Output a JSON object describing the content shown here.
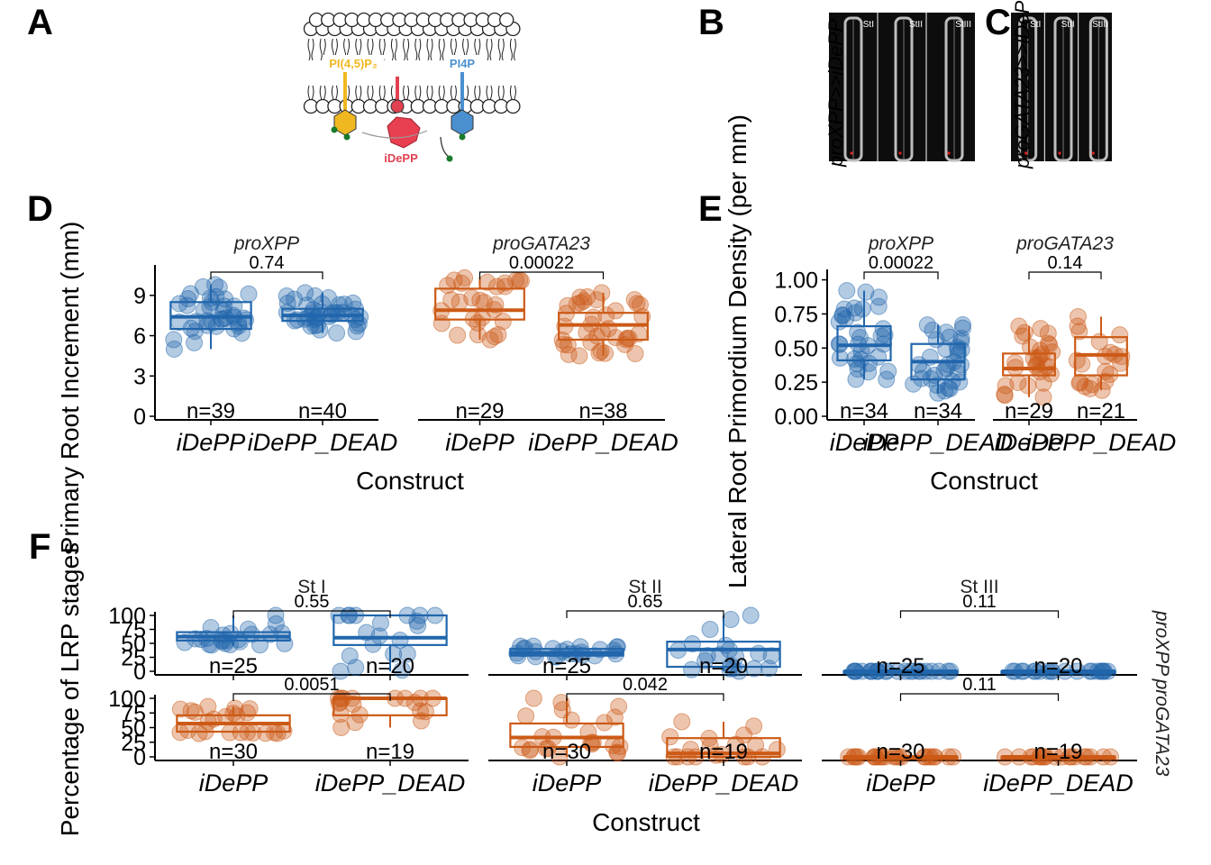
{
  "colors": {
    "proXPP": "#2166ac",
    "proGATA23": "#cc5a16",
    "lipid": "#ffffff"
  },
  "panel_labels": [
    "A",
    "B",
    "C",
    "D",
    "E",
    "F"
  ],
  "panelA": {
    "pip2": "PI(4,5)P₂",
    "pi4p": "PI4P",
    "enzyme": "iDePP"
  },
  "panelB": {
    "rotated_label": "proXPP>>iDePP",
    "stages": [
      "StI",
      "StII",
      "StIII"
    ]
  },
  "panelC": {
    "rotated_label": "proGATA23>>iDePP",
    "stages": [
      "StI",
      "StII",
      "StIII"
    ]
  },
  "chart_data": [
    {
      "id": "D",
      "type": "box",
      "ylabel": "Primary Root Increment (mm)",
      "xlabel": "Construct",
      "ylim": [
        0,
        11
      ],
      "yticks": [
        0,
        3,
        6,
        9
      ],
      "facets": [
        {
          "name": "proXPP",
          "color_key": "proXPP",
          "pvalue": "0.74",
          "groups": [
            {
              "category": "iDePP",
              "n": "n=39",
              "box": {
                "min": 5.0,
                "q1": 6.5,
                "median": 7.4,
                "q3": 8.5,
                "max": 9.8
              }
            },
            {
              "category": "iDePP_DEAD",
              "n": "n=40",
              "box": {
                "min": 6.2,
                "q1": 7.1,
                "median": 7.5,
                "q3": 8.0,
                "max": 9.2
              }
            }
          ]
        },
        {
          "name": "proGATA23",
          "color_key": "proGATA23",
          "pvalue": "0.00022",
          "groups": [
            {
              "category": "iDePP",
              "n": "n=29",
              "box": {
                "min": 5.7,
                "q1": 7.2,
                "median": 7.9,
                "q3": 9.5,
                "max": 10.3
              }
            },
            {
              "category": "iDePP_DEAD",
              "n": "n=38",
              "box": {
                "min": 4.5,
                "q1": 5.7,
                "median": 6.8,
                "q3": 7.7,
                "max": 9.2
              }
            }
          ]
        }
      ]
    },
    {
      "id": "E",
      "type": "box",
      "ylabel": "Lateral Root Primordium Density (per mm)",
      "xlabel": "Construct",
      "ylim": [
        0,
        1.05
      ],
      "yticks": [
        "0.00",
        "0.25",
        "0.50",
        "0.75",
        "1.00"
      ],
      "facets": [
        {
          "name": "proXPP",
          "color_key": "proXPP",
          "pvalue": "0.00022",
          "groups": [
            {
              "category": "iDePP",
              "n": "n=34",
              "box": {
                "min": 0.27,
                "q1": 0.41,
                "median": 0.52,
                "q3": 0.66,
                "max": 0.92
              }
            },
            {
              "category": "iDePP_DEAD",
              "n": "n=34",
              "box": {
                "min": 0.17,
                "q1": 0.27,
                "median": 0.4,
                "q3": 0.53,
                "max": 0.67
              }
            }
          ]
        },
        {
          "name": "proGATA23",
          "color_key": "proGATA23",
          "pvalue": "0.14",
          "groups": [
            {
              "category": "iDePP",
              "n": "n=29",
              "box": {
                "min": 0.14,
                "q1": 0.3,
                "median": 0.35,
                "q3": 0.46,
                "max": 0.66
              }
            },
            {
              "category": "iDePP_DEAD",
              "n": "n=21",
              "box": {
                "min": 0.19,
                "q1": 0.3,
                "median": 0.45,
                "q3": 0.58,
                "max": 0.73
              }
            }
          ]
        }
      ]
    },
    {
      "id": "F",
      "type": "box",
      "ylabel": "Percentage of LRP stages",
      "xlabel": "Construct",
      "ylim": [
        0,
        100
      ],
      "yticks": [
        0,
        25,
        50,
        75,
        100
      ],
      "cols": [
        "St I",
        "St II",
        "St III"
      ],
      "rows": [
        {
          "name": "proXPP",
          "color_key": "proXPP",
          "panels": [
            {
              "pvalue": "0.55",
              "groups": [
                {
                  "category": "iDePP",
                  "n": "n=25",
                  "box": {
                    "min": 47,
                    "q1": 55,
                    "median": 62,
                    "q3": 70,
                    "max": 100
                  }
                },
                {
                  "category": "iDePP_DEAD",
                  "n": "n=20",
                  "box": {
                    "min": 0,
                    "q1": 47,
                    "median": 60,
                    "q3": 100,
                    "max": 100
                  }
                }
              ]
            },
            {
              "pvalue": "0.65",
              "groups": [
                {
                  "category": "iDePP",
                  "n": "n=25",
                  "box": {
                    "min": 26,
                    "q1": 28,
                    "median": 33,
                    "q3": 40,
                    "max": 45
                  }
                },
                {
                  "category": "iDePP_DEAD",
                  "n": "n=20",
                  "box": {
                    "min": 0,
                    "q1": 8,
                    "median": 39,
                    "q3": 53,
                    "max": 100
                  }
                }
              ]
            },
            {
              "pvalue": "0.11",
              "groups": [
                {
                  "category": "iDePP",
                  "n": "n=25",
                  "box": {
                    "min": 0,
                    "q1": 0,
                    "median": 0,
                    "q3": 0,
                    "max": 0
                  }
                },
                {
                  "category": "iDePP_DEAD",
                  "n": "n=20",
                  "box": {
                    "min": 0,
                    "q1": 0,
                    "median": 0,
                    "q3": 0,
                    "max": 0
                  }
                }
              ]
            }
          ]
        },
        {
          "name": "proGATA23",
          "color_key": "proGATA23",
          "panels": [
            {
              "pvalue": "0.0051",
              "groups": [
                {
                  "category": "iDePP",
                  "n": "n=30",
                  "box": {
                    "min": 40,
                    "q1": 43,
                    "median": 57,
                    "q3": 71,
                    "max": 86
                  }
                },
                {
                  "category": "iDePP_DEAD",
                  "n": "n=19",
                  "box": {
                    "min": 50,
                    "q1": 71,
                    "median": 100,
                    "q3": 100,
                    "max": 100
                  }
                }
              ]
            },
            {
              "pvalue": "0.042",
              "groups": [
                {
                  "category": "iDePP",
                  "n": "n=30",
                  "box": {
                    "min": 0,
                    "q1": 17,
                    "median": 33,
                    "q3": 57,
                    "max": 100
                  }
                },
                {
                  "category": "iDePP_DEAD",
                  "n": "n=19",
                  "box": {
                    "min": 0,
                    "q1": 0,
                    "median": 6,
                    "q3": 32,
                    "max": 60
                  }
                }
              ]
            },
            {
              "pvalue": "0.11",
              "groups": [
                {
                  "category": "iDePP",
                  "n": "n=30",
                  "box": {
                    "min": 0,
                    "q1": 0,
                    "median": 0,
                    "q3": 0,
                    "max": 0
                  }
                },
                {
                  "category": "iDePP_DEAD",
                  "n": "n=19",
                  "box": {
                    "min": 0,
                    "q1": 0,
                    "median": 0,
                    "q3": 0,
                    "max": 0
                  }
                }
              ]
            }
          ]
        }
      ]
    }
  ]
}
